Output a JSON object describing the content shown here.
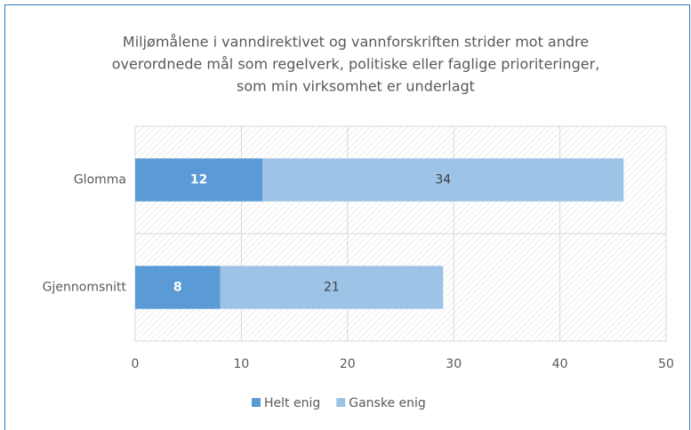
{
  "chart_data": {
    "type": "stacked-bar-horizontal",
    "title": [
      "Miljømålene i vanndirektivet og vannforskriften strider mot andre",
      "overordnede mål som regelverk, politiske eller faglige prioriteringer,",
      "som min virksomhet er underlagt"
    ],
    "categories": [
      "Glomma",
      "Gjennomsnitt"
    ],
    "series": [
      {
        "name": "Helt enig",
        "color": "#5b9bd5",
        "values": [
          12,
          8
        ]
      },
      {
        "name": "Ganske enig",
        "color": "#9dc3e6",
        "values": [
          34,
          21
        ]
      }
    ],
    "xlim": [
      0,
      50
    ],
    "xticks": [
      0,
      10,
      20,
      30,
      40,
      50
    ],
    "grid": true,
    "legend": "bottom"
  }
}
